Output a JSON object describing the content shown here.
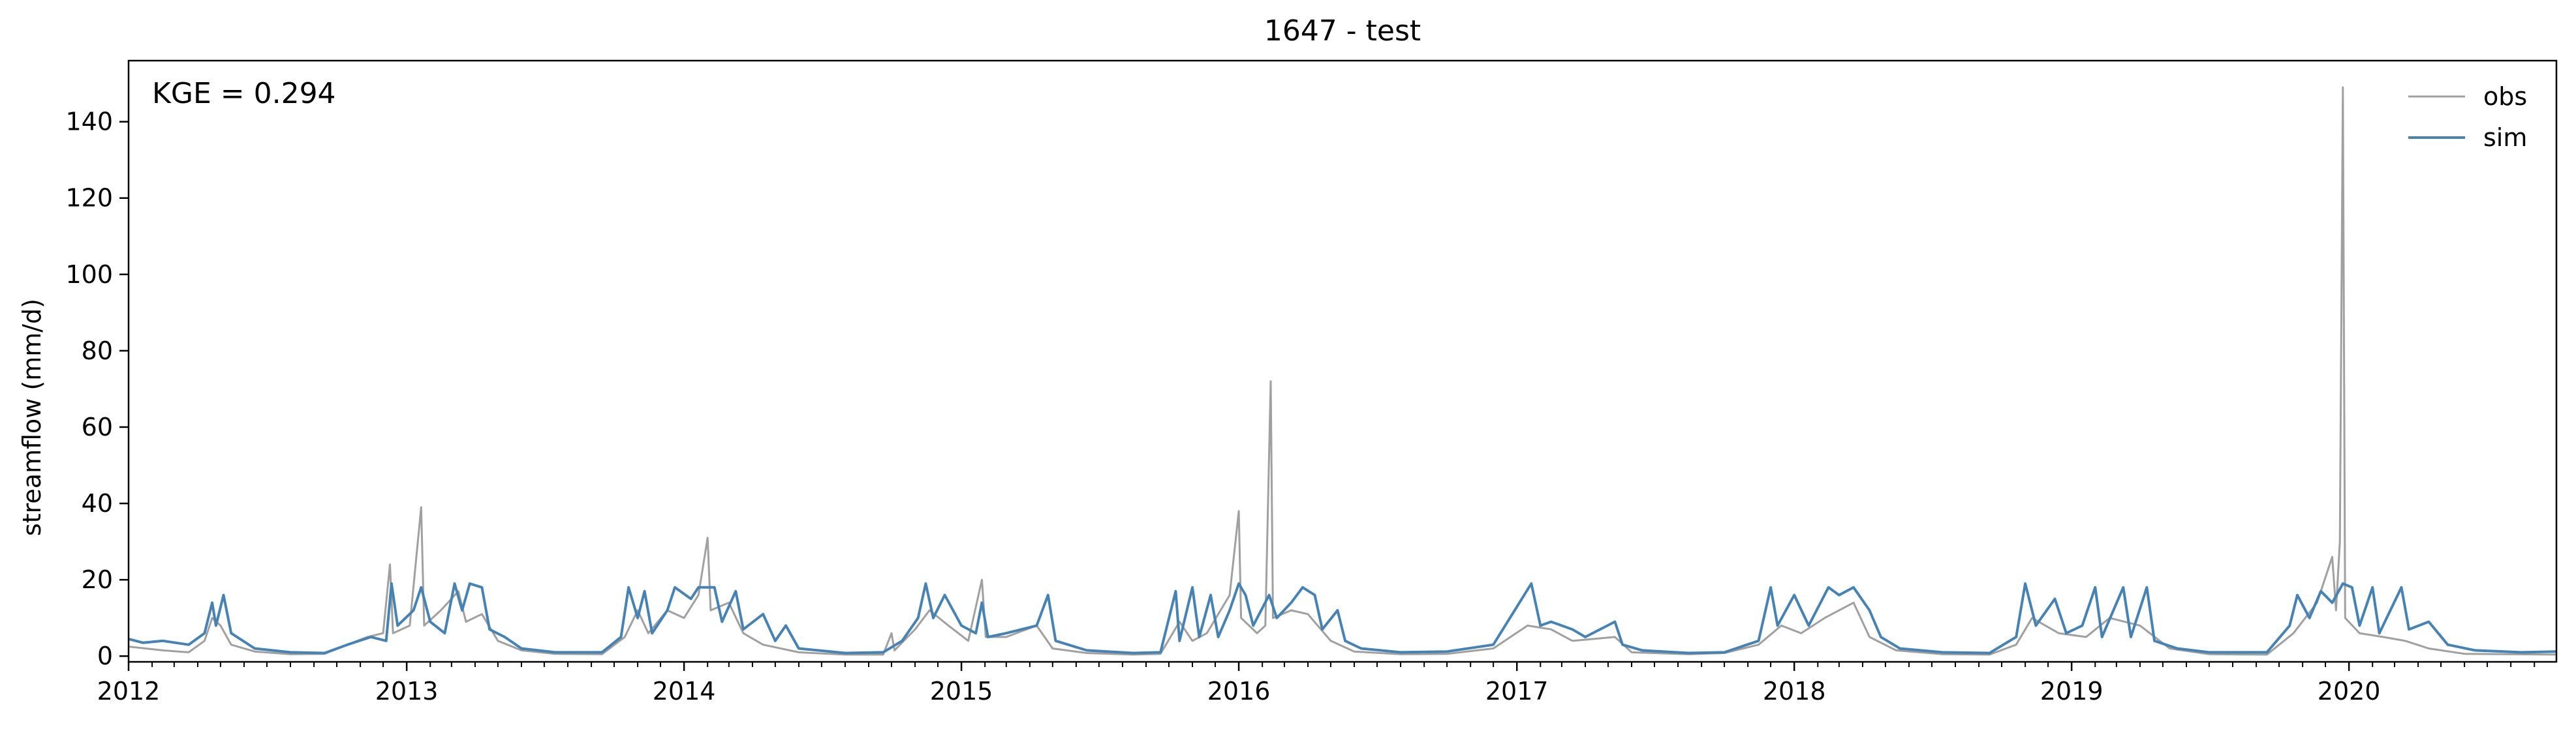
{
  "chart_data": {
    "type": "line",
    "title": "1647 - test",
    "ylabel": "streamflow (mm/d)",
    "xlabel": "",
    "annotation": "KGE = 0.294",
    "xlim": [
      "2012-01-01",
      "2020-09-30"
    ],
    "ylim": [
      -1.5,
      156
    ],
    "x_ticks": [
      "2012",
      "2013",
      "2014",
      "2015",
      "2016",
      "2017",
      "2018",
      "2019",
      "2020"
    ],
    "y_ticks": [
      "0",
      "20",
      "40",
      "60",
      "80",
      "100",
      "120",
      "140"
    ],
    "grid": false,
    "legend_position": "top-right",
    "series": [
      {
        "name": "obs",
        "color": "#a0a0a0",
        "points": [
          [
            "2012-01-01",
            2.5
          ],
          [
            "2012-02-15",
            1.5
          ],
          [
            "2012-03-20",
            1.0
          ],
          [
            "2012-04-10",
            4.0
          ],
          [
            "2012-04-20",
            10.0
          ],
          [
            "2012-05-01",
            8.0
          ],
          [
            "2012-05-15",
            3.0
          ],
          [
            "2012-06-15",
            1.2
          ],
          [
            "2012-08-01",
            0.5
          ],
          [
            "2012-09-15",
            0.6
          ],
          [
            "2012-10-15",
            3.0
          ],
          [
            "2012-11-10",
            5.0
          ],
          [
            "2012-12-01",
            6.0
          ],
          [
            "2012-12-10",
            24.0
          ],
          [
            "2012-12-14",
            6.0
          ],
          [
            "2013-01-05",
            8.0
          ],
          [
            "2013-01-20",
            39.0
          ],
          [
            "2013-01-24",
            8.0
          ],
          [
            "2013-02-15",
            12.0
          ],
          [
            "2013-03-10",
            17.0
          ],
          [
            "2013-03-20",
            9.0
          ],
          [
            "2013-04-10",
            11.0
          ],
          [
            "2013-05-01",
            4.0
          ],
          [
            "2013-06-01",
            1.5
          ],
          [
            "2013-07-15",
            0.6
          ],
          [
            "2013-09-15",
            0.5
          ],
          [
            "2013-10-15",
            5.0
          ],
          [
            "2013-11-01",
            12.0
          ],
          [
            "2013-11-15",
            6.0
          ],
          [
            "2013-12-10",
            12.0
          ],
          [
            "2014-01-01",
            10.0
          ],
          [
            "2014-01-20",
            16.0
          ],
          [
            "2014-02-01",
            31.0
          ],
          [
            "2014-02-05",
            12.0
          ],
          [
            "2014-03-01",
            14.0
          ],
          [
            "2014-03-20",
            6.0
          ],
          [
            "2014-04-15",
            3.0
          ],
          [
            "2014-06-01",
            1.0
          ],
          [
            "2014-08-01",
            0.4
          ],
          [
            "2014-09-20",
            0.4
          ],
          [
            "2014-10-01",
            6.0
          ],
          [
            "2014-10-05",
            1.5
          ],
          [
            "2014-11-01",
            7.0
          ],
          [
            "2014-11-20",
            12.0
          ],
          [
            "2014-12-15",
            8.0
          ],
          [
            "2015-01-10",
            4.0
          ],
          [
            "2015-01-28",
            20.0
          ],
          [
            "2015-02-02",
            5.0
          ],
          [
            "2015-03-01",
            5.0
          ],
          [
            "2015-04-10",
            8.0
          ],
          [
            "2015-05-01",
            2.0
          ],
          [
            "2015-06-15",
            0.8
          ],
          [
            "2015-08-15",
            0.4
          ],
          [
            "2015-09-20",
            0.6
          ],
          [
            "2015-10-15",
            9.0
          ],
          [
            "2015-11-01",
            4.0
          ],
          [
            "2015-11-20",
            6.0
          ],
          [
            "2015-12-20",
            16.0
          ],
          [
            "2016-01-01",
            38.0
          ],
          [
            "2016-01-04",
            10.0
          ],
          [
            "2016-01-25",
            6.0
          ],
          [
            "2016-02-05",
            8.0
          ],
          [
            "2016-02-12",
            72.0
          ],
          [
            "2016-02-15",
            10.0
          ],
          [
            "2016-03-10",
            12.0
          ],
          [
            "2016-04-01",
            11.0
          ],
          [
            "2016-05-01",
            4.0
          ],
          [
            "2016-06-01",
            1.2
          ],
          [
            "2016-08-01",
            0.5
          ],
          [
            "2016-10-01",
            0.6
          ],
          [
            "2016-12-01",
            2.0
          ],
          [
            "2017-01-15",
            8.0
          ],
          [
            "2017-02-15",
            7.0
          ],
          [
            "2017-03-15",
            4.0
          ],
          [
            "2017-05-10",
            5.0
          ],
          [
            "2017-06-01",
            1.0
          ],
          [
            "2017-08-15",
            0.5
          ],
          [
            "2017-10-01",
            0.8
          ],
          [
            "2017-11-15",
            3.0
          ],
          [
            "2017-12-15",
            8.0
          ],
          [
            "2018-01-10",
            6.0
          ],
          [
            "2018-02-10",
            10.0
          ],
          [
            "2018-03-20",
            14.0
          ],
          [
            "2018-04-10",
            5.0
          ],
          [
            "2018-05-15",
            1.5
          ],
          [
            "2018-07-15",
            0.5
          ],
          [
            "2018-09-15",
            0.4
          ],
          [
            "2018-10-20",
            3.0
          ],
          [
            "2018-11-10",
            10.0
          ],
          [
            "2018-12-15",
            6.0
          ],
          [
            "2019-01-20",
            5.0
          ],
          [
            "2019-02-20",
            10.0
          ],
          [
            "2019-04-01",
            8.0
          ],
          [
            "2019-05-10",
            2.0
          ],
          [
            "2019-07-01",
            0.5
          ],
          [
            "2019-09-15",
            0.4
          ],
          [
            "2019-10-20",
            6.0
          ],
          [
            "2019-11-20",
            14.0
          ],
          [
            "2019-12-10",
            26.0
          ],
          [
            "2019-12-15",
            12.0
          ],
          [
            "2019-12-20",
            30.0
          ],
          [
            "2019-12-24",
            149.0
          ],
          [
            "2019-12-27",
            10.0
          ],
          [
            "2020-01-15",
            6.0
          ],
          [
            "2020-02-15",
            5.0
          ],
          [
            "2020-03-15",
            4.0
          ],
          [
            "2020-04-15",
            2.0
          ],
          [
            "2020-06-01",
            0.6
          ],
          [
            "2020-09-30",
            0.4
          ]
        ]
      },
      {
        "name": "sim",
        "color": "#4682b4",
        "points": [
          [
            "2012-01-01",
            4.5
          ],
          [
            "2012-01-20",
            3.5
          ],
          [
            "2012-02-15",
            4.0
          ],
          [
            "2012-03-20",
            3.0
          ],
          [
            "2012-04-10",
            6.0
          ],
          [
            "2012-04-20",
            14.0
          ],
          [
            "2012-04-25",
            8.0
          ],
          [
            "2012-05-05",
            16.0
          ],
          [
            "2012-05-15",
            6.0
          ],
          [
            "2012-06-15",
            2.0
          ],
          [
            "2012-08-01",
            1.0
          ],
          [
            "2012-09-15",
            0.8
          ],
          [
            "2012-10-15",
            3.0
          ],
          [
            "2012-11-15",
            5.0
          ],
          [
            "2012-12-05",
            4.0
          ],
          [
            "2012-12-12",
            19.0
          ],
          [
            "2012-12-20",
            8.0
          ],
          [
            "2013-01-10",
            12.0
          ],
          [
            "2013-01-20",
            18.0
          ],
          [
            "2013-02-01",
            9.0
          ],
          [
            "2013-02-20",
            6.0
          ],
          [
            "2013-03-05",
            19.0
          ],
          [
            "2013-03-15",
            12.0
          ],
          [
            "2013-03-25",
            19.0
          ],
          [
            "2013-04-10",
            18.0
          ],
          [
            "2013-04-20",
            7.0
          ],
          [
            "2013-05-10",
            5.0
          ],
          [
            "2013-06-01",
            2.0
          ],
          [
            "2013-07-15",
            1.0
          ],
          [
            "2013-09-15",
            1.0
          ],
          [
            "2013-10-10",
            5.0
          ],
          [
            "2013-10-20",
            18.0
          ],
          [
            "2013-11-01",
            10.0
          ],
          [
            "2013-11-10",
            17.0
          ],
          [
            "2013-11-20",
            6.0
          ],
          [
            "2013-12-10",
            12.0
          ],
          [
            "2013-12-20",
            18.0
          ],
          [
            "2014-01-10",
            15.0
          ],
          [
            "2014-01-20",
            18.0
          ],
          [
            "2014-02-10",
            18.0
          ],
          [
            "2014-02-20",
            9.0
          ],
          [
            "2014-03-10",
            17.0
          ],
          [
            "2014-03-20",
            7.0
          ],
          [
            "2014-04-15",
            11.0
          ],
          [
            "2014-05-01",
            4.0
          ],
          [
            "2014-05-15",
            8.0
          ],
          [
            "2014-06-01",
            2.0
          ],
          [
            "2014-08-01",
            0.8
          ],
          [
            "2014-09-20",
            1.0
          ],
          [
            "2014-10-15",
            4.0
          ],
          [
            "2014-11-05",
            10.0
          ],
          [
            "2014-11-15",
            19.0
          ],
          [
            "2014-11-25",
            10.0
          ],
          [
            "2014-12-10",
            16.0
          ],
          [
            "2015-01-01",
            8.0
          ],
          [
            "2015-01-20",
            6.0
          ],
          [
            "2015-01-28",
            14.0
          ],
          [
            "2015-02-05",
            5.0
          ],
          [
            "2015-03-01",
            6.0
          ],
          [
            "2015-04-10",
            8.0
          ],
          [
            "2015-04-25",
            16.0
          ],
          [
            "2015-05-05",
            4.0
          ],
          [
            "2015-06-15",
            1.5
          ],
          [
            "2015-08-15",
            0.8
          ],
          [
            "2015-09-20",
            1.0
          ],
          [
            "2015-10-10",
            17.0
          ],
          [
            "2015-10-15",
            4.0
          ],
          [
            "2015-11-01",
            18.0
          ],
          [
            "2015-11-10",
            5.0
          ],
          [
            "2015-11-25",
            16.0
          ],
          [
            "2015-12-05",
            5.0
          ],
          [
            "2015-12-20",
            12.0
          ],
          [
            "2016-01-01",
            19.0
          ],
          [
            "2016-01-10",
            16.0
          ],
          [
            "2016-01-20",
            8.0
          ],
          [
            "2016-02-10",
            16.0
          ],
          [
            "2016-02-20",
            10.0
          ],
          [
            "2016-03-10",
            14.0
          ],
          [
            "2016-03-25",
            18.0
          ],
          [
            "2016-04-10",
            16.0
          ],
          [
            "2016-04-20",
            7.0
          ],
          [
            "2016-05-10",
            12.0
          ],
          [
            "2016-05-20",
            4.0
          ],
          [
            "2016-06-10",
            2.0
          ],
          [
            "2016-08-01",
            1.0
          ],
          [
            "2016-10-01",
            1.2
          ],
          [
            "2016-12-01",
            3.0
          ],
          [
            "2017-01-20",
            19.0
          ],
          [
            "2017-02-01",
            8.0
          ],
          [
            "2017-02-15",
            9.0
          ],
          [
            "2017-03-15",
            7.0
          ],
          [
            "2017-04-01",
            5.0
          ],
          [
            "2017-05-10",
            9.0
          ],
          [
            "2017-05-20",
            3.0
          ],
          [
            "2017-06-15",
            1.5
          ],
          [
            "2017-08-15",
            0.8
          ],
          [
            "2017-10-01",
            1.0
          ],
          [
            "2017-11-15",
            4.0
          ],
          [
            "2017-12-01",
            18.0
          ],
          [
            "2017-12-10",
            8.0
          ],
          [
            "2018-01-01",
            16.0
          ],
          [
            "2018-01-20",
            8.0
          ],
          [
            "2018-02-15",
            18.0
          ],
          [
            "2018-03-01",
            16.0
          ],
          [
            "2018-03-20",
            18.0
          ],
          [
            "2018-04-10",
            12.0
          ],
          [
            "2018-04-25",
            5.0
          ],
          [
            "2018-05-20",
            2.0
          ],
          [
            "2018-07-15",
            1.0
          ],
          [
            "2018-09-15",
            0.8
          ],
          [
            "2018-10-20",
            5.0
          ],
          [
            "2018-11-01",
            19.0
          ],
          [
            "2018-11-15",
            8.0
          ],
          [
            "2018-12-10",
            15.0
          ],
          [
            "2018-12-25",
            6.0
          ],
          [
            "2019-01-15",
            8.0
          ],
          [
            "2019-02-01",
            18.0
          ],
          [
            "2019-02-10",
            5.0
          ],
          [
            "2019-03-10",
            18.0
          ],
          [
            "2019-03-20",
            5.0
          ],
          [
            "2019-04-10",
            18.0
          ],
          [
            "2019-04-20",
            4.0
          ],
          [
            "2019-05-20",
            2.0
          ],
          [
            "2019-07-01",
            1.0
          ],
          [
            "2019-09-15",
            1.0
          ],
          [
            "2019-10-15",
            8.0
          ],
          [
            "2019-10-25",
            16.0
          ],
          [
            "2019-11-10",
            10.0
          ],
          [
            "2019-11-25",
            17.0
          ],
          [
            "2019-12-10",
            14.0
          ],
          [
            "2019-12-24",
            19.0
          ],
          [
            "2020-01-05",
            18.0
          ],
          [
            "2020-01-15",
            8.0
          ],
          [
            "2020-02-01",
            18.0
          ],
          [
            "2020-02-10",
            6.0
          ],
          [
            "2020-03-10",
            18.0
          ],
          [
            "2020-03-20",
            7.0
          ],
          [
            "2020-04-15",
            9.0
          ],
          [
            "2020-05-10",
            3.0
          ],
          [
            "2020-06-15",
            1.5
          ],
          [
            "2020-08-15",
            1.0
          ],
          [
            "2020-09-30",
            1.2
          ]
        ]
      }
    ]
  }
}
